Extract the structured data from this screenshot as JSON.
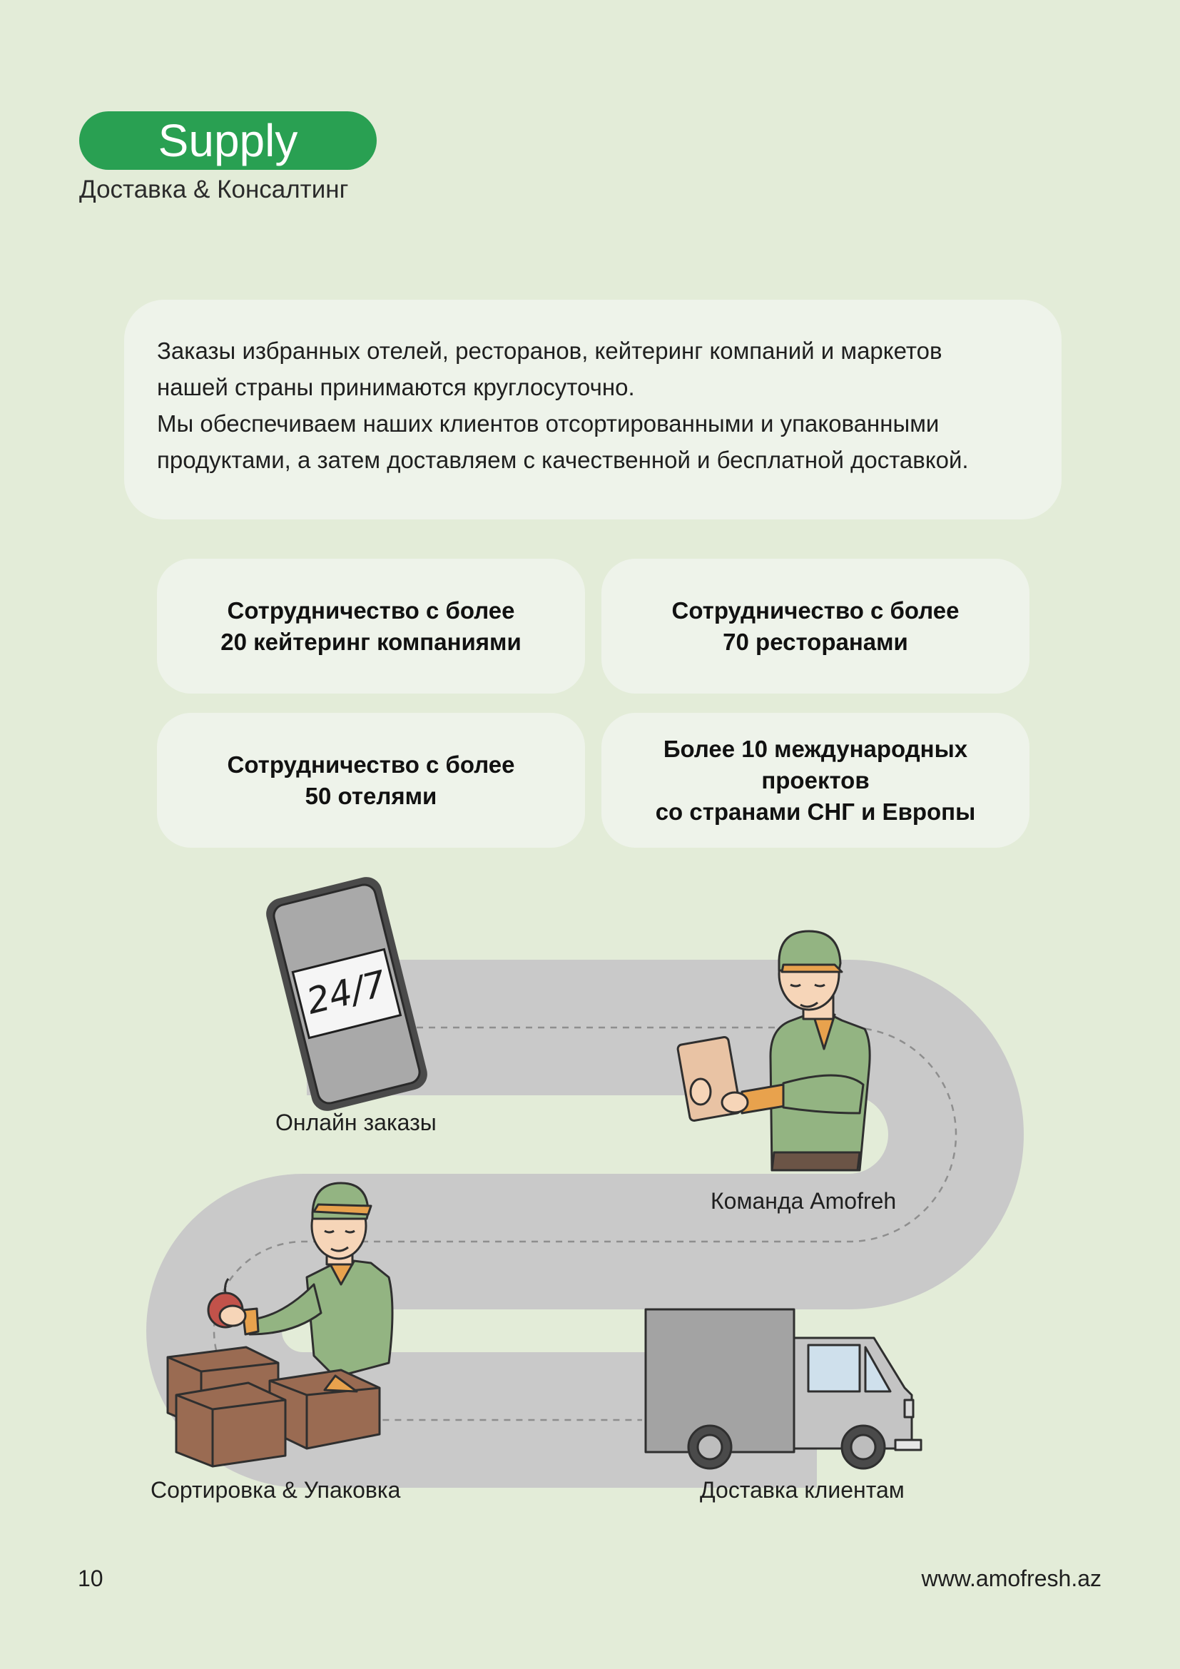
{
  "header": {
    "badge": "Supply",
    "subtitle": "Доставка & Консалтинг"
  },
  "intro": {
    "lines": [
      "Заказы избранных отелей, ресторанов, кейтеринг компаний и маркетов",
      "нашей страны принимаются круглосуточно.",
      "Мы обеспечиваем наших клиентов отсортированными и упакованными",
      "продуктами, а затем доставляем с качественной и бесплатной доставкой."
    ]
  },
  "stats": [
    "Сотрудничество с более\n20 кейтеринг компаниями",
    "Сотрудничество с более\n70 ресторанами",
    "Сотрудничество с более\n50 отелями",
    "Более 10 международных\nпроектов\nсо странами СНГ и Европы"
  ],
  "process": {
    "phone_text": "24/7",
    "steps": [
      "Онлайн заказы",
      "Команда Amofreh",
      "Сортировка & Упаковка",
      "Доставка клиентам"
    ]
  },
  "footer": {
    "page_number": "10",
    "website": "www.amofresh.az"
  },
  "colors": {
    "background": "#e3ecd8",
    "accent": "#29a052",
    "card": "#eef3ea",
    "road": "#c9c9c9",
    "shirt": "#93b482",
    "box": "#9a6b52",
    "truck": "#a3a3a3"
  },
  "icons": [
    "phone-icon",
    "worker-icon",
    "tablet-icon",
    "apple-icon",
    "box-icon",
    "truck-icon"
  ]
}
